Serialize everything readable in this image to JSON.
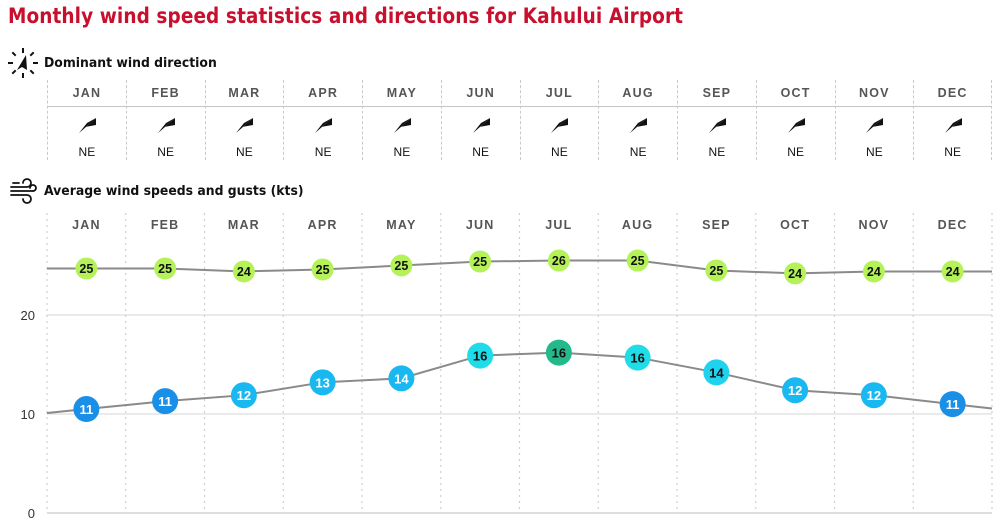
{
  "title": "Monthly wind speed statistics and directions for Kahului Airport",
  "direction_section": {
    "label": "Dominant wind direction",
    "icon": "compass-arrow-icon",
    "months": [
      {
        "month": "JAN",
        "direction": "NE"
      },
      {
        "month": "FEB",
        "direction": "NE"
      },
      {
        "month": "MAR",
        "direction": "NE"
      },
      {
        "month": "APR",
        "direction": "NE"
      },
      {
        "month": "MAY",
        "direction": "NE"
      },
      {
        "month": "JUN",
        "direction": "NE"
      },
      {
        "month": "JUL",
        "direction": "NE"
      },
      {
        "month": "AUG",
        "direction": "NE"
      },
      {
        "month": "SEP",
        "direction": "NE"
      },
      {
        "month": "OCT",
        "direction": "NE"
      },
      {
        "month": "NOV",
        "direction": "NE"
      },
      {
        "month": "DEC",
        "direction": "NE"
      }
    ]
  },
  "speed_section": {
    "label": "Average wind speeds and gusts (kts)",
    "icon": "wind-icon"
  },
  "colors": {
    "title": "#c8102e",
    "gust_bubble": "#b5f25a",
    "line": "#8a8a8a",
    "grid": "#cfcfcf",
    "wind_scale": {
      "11": "#1a8fe8",
      "12": "#1ab8f0",
      "13": "#1ab8f0",
      "14": "#1ab8f0",
      "14_high": "#1fd3ee",
      "16": "#1fdce8",
      "16_peak": "#23b98a"
    }
  },
  "chart_data": {
    "type": "line",
    "title": "Average wind speeds and gusts (kts)",
    "categories": [
      "JAN",
      "FEB",
      "MAR",
      "APR",
      "MAY",
      "JUN",
      "JUL",
      "AUG",
      "SEP",
      "OCT",
      "NOV",
      "DEC"
    ],
    "series": [
      {
        "name": "Gusts",
        "labels": [
          25,
          25,
          24,
          25,
          25,
          25,
          26,
          25,
          25,
          24,
          24,
          24
        ],
        "values": [
          24.7,
          24.7,
          24.4,
          24.6,
          25.0,
          25.4,
          25.5,
          25.5,
          24.5,
          24.2,
          24.4,
          24.4
        ]
      },
      {
        "name": "Average wind speed",
        "labels": [
          11,
          11,
          12,
          13,
          14,
          16,
          16,
          16,
          14,
          12,
          12,
          11
        ],
        "values": [
          10.5,
          11.3,
          11.9,
          13.2,
          13.6,
          15.9,
          16.2,
          15.7,
          14.2,
          12.4,
          11.9,
          11.0
        ]
      }
    ],
    "wind_bubble_colors": [
      "#1a8fe8",
      "#1a8fe8",
      "#1ab8f0",
      "#1ab8f0",
      "#1ab8f0",
      "#1fdce8",
      "#23b98a",
      "#1fdce8",
      "#1fd3ee",
      "#1ab8f0",
      "#1ab8f0",
      "#1a8fe8"
    ],
    "wind_text_colors": [
      "#fff",
      "#fff",
      "#fff",
      "#fff",
      "#fff",
      "#111",
      "#111",
      "#111",
      "#111",
      "#fff",
      "#fff",
      "#fff"
    ],
    "yticks": [
      0,
      10,
      20
    ],
    "ylim": [
      0,
      30
    ],
    "xlabel": "",
    "ylabel": "",
    "grid": true,
    "legend": "none"
  }
}
